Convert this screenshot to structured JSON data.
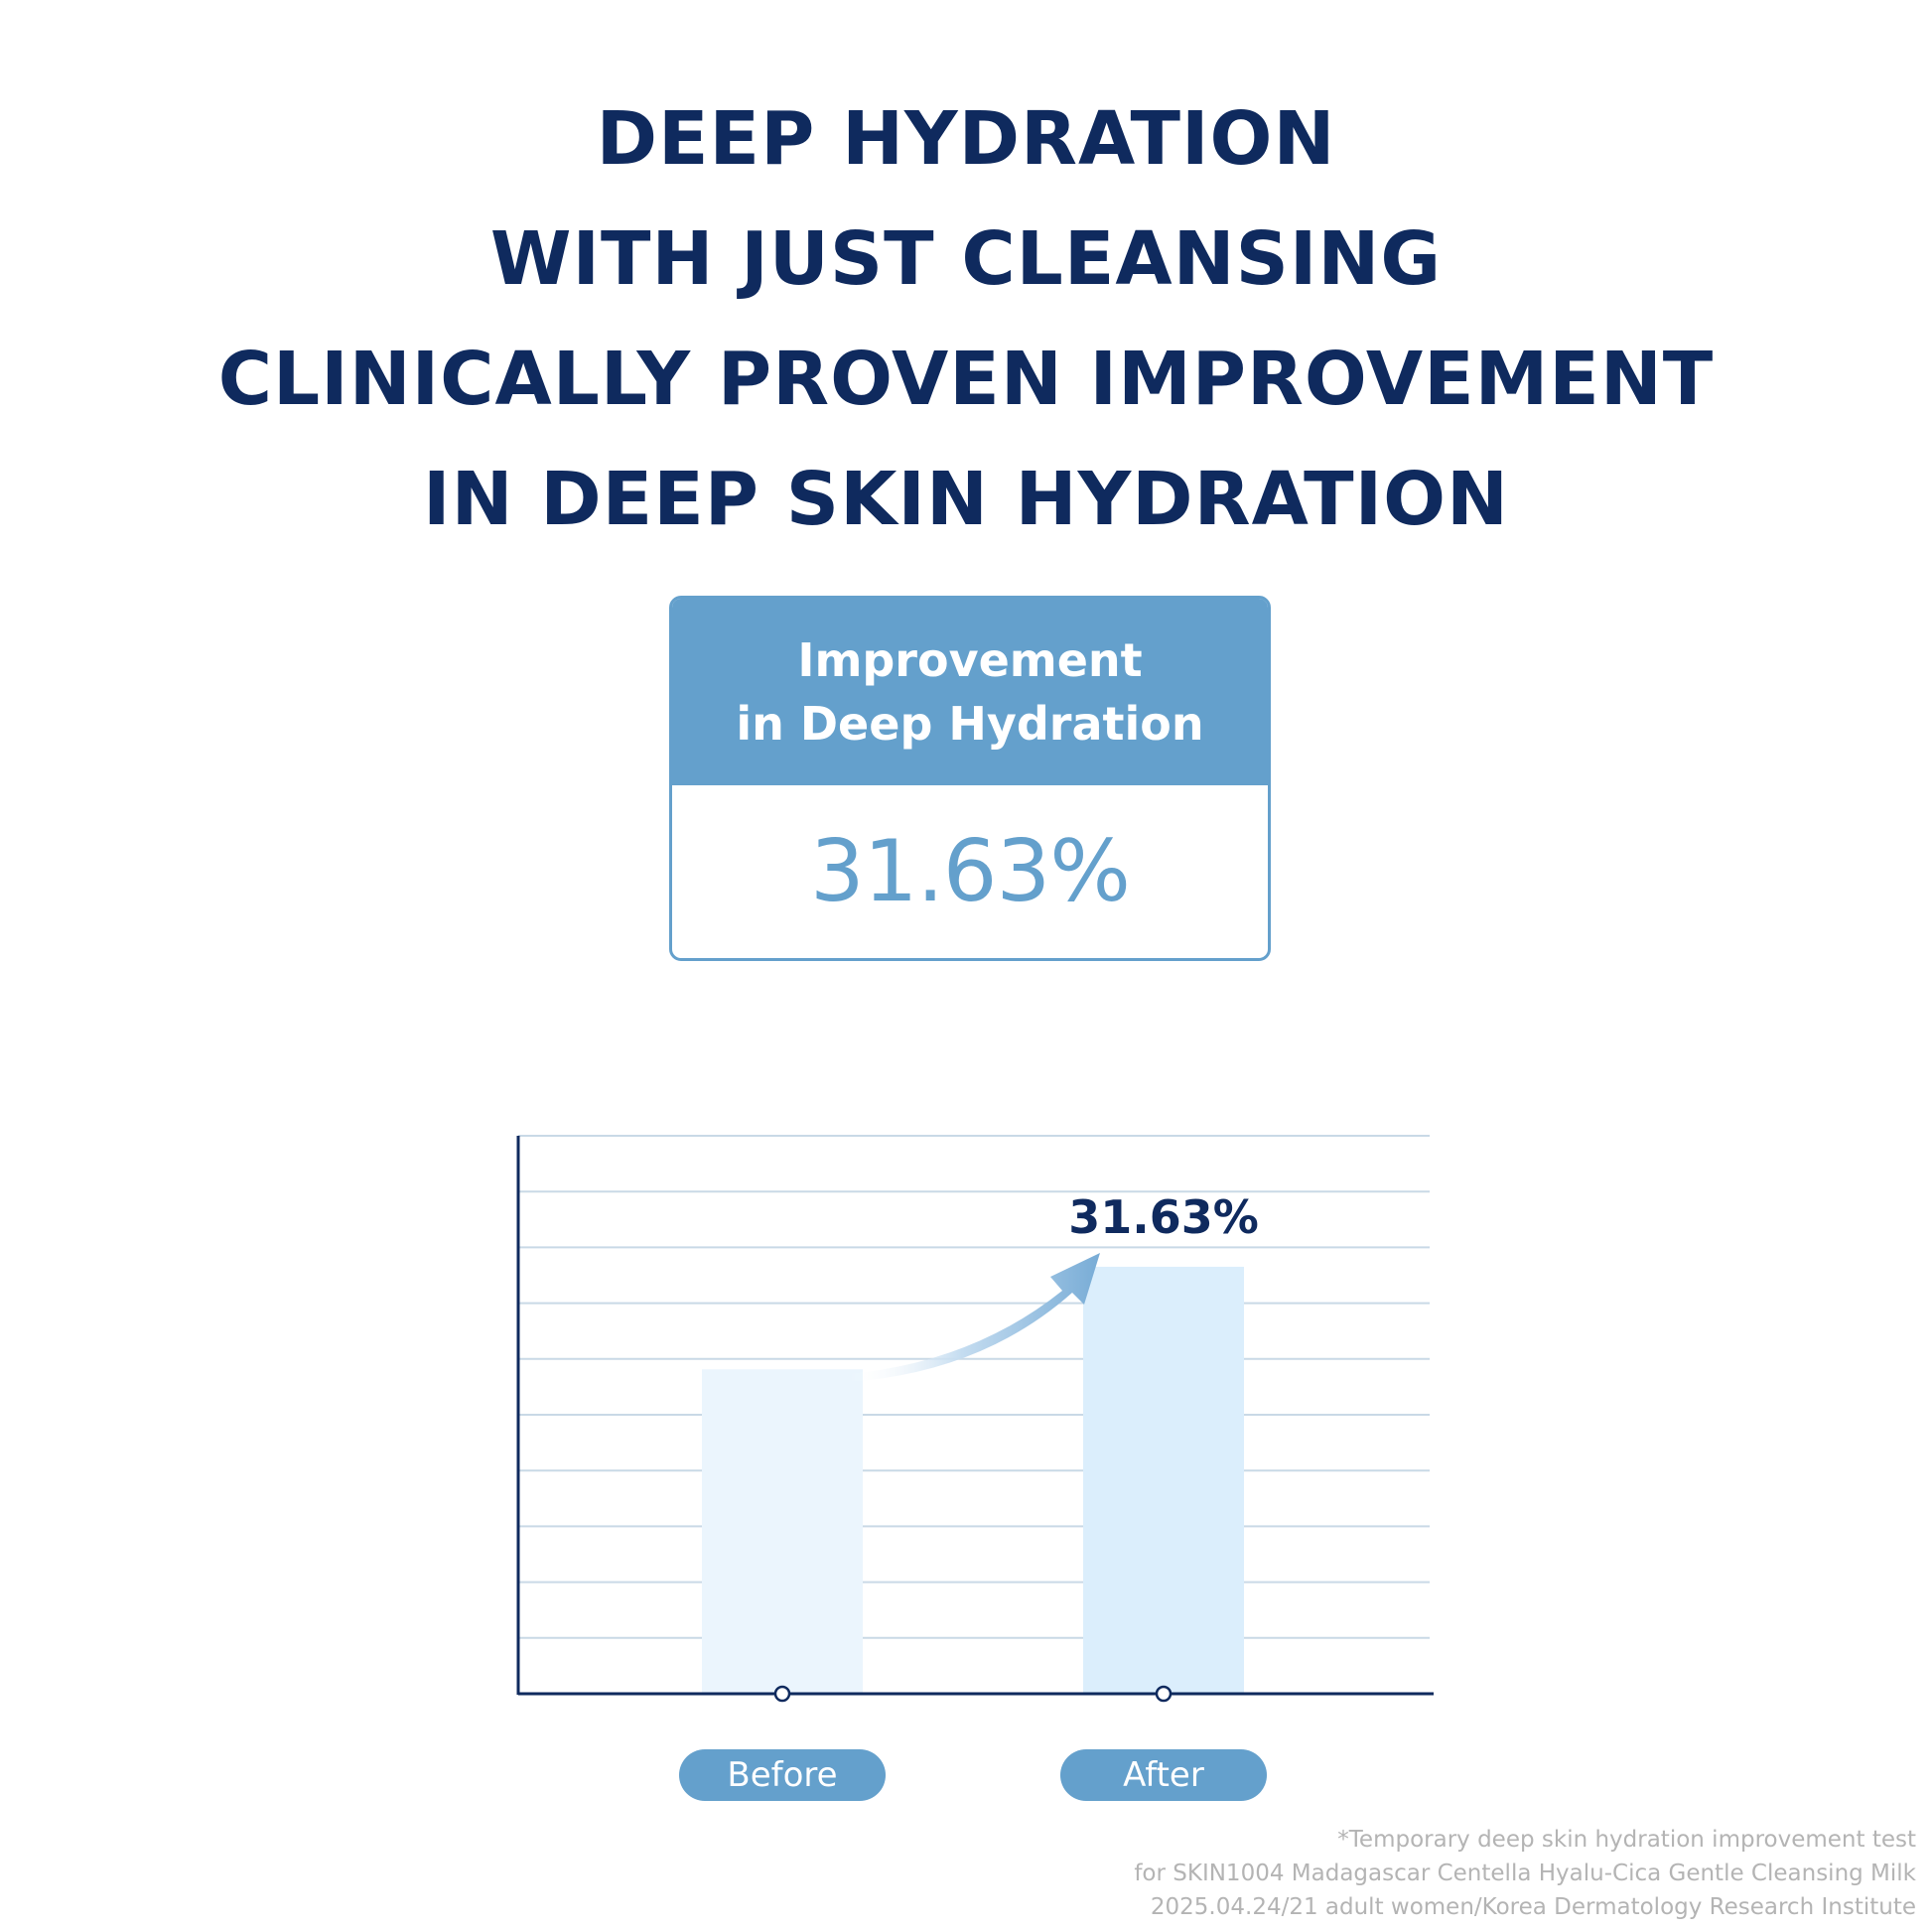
{
  "headline": [
    "DEEP HYDRATION",
    "WITH JUST CLEANSING",
    "CLINICALLY PROVEN IMPROVEMENT",
    "IN DEEP SKIN HYDRATION"
  ],
  "stat": {
    "label_line1": "Improvement",
    "label_line2": "in Deep Hydration",
    "value": "31.63%"
  },
  "colors": {
    "headline": "#0f2a5e",
    "accent": "#64a0cc",
    "bar_before": "#ebf5fd",
    "bar_after": "#dbeefc",
    "gridline": "#c9d9e6",
    "axis": "#0f2a5e",
    "footnote": "#b4b4b4"
  },
  "chart_data": {
    "type": "bar",
    "categories": [
      "Before",
      "After"
    ],
    "values": [
      100,
      131.63
    ],
    "data_labels": [
      "",
      "31.63%"
    ],
    "ylim": [
      0,
      172
    ],
    "grid": true,
    "gridline_count": 9,
    "annotation": "upward arrow from Before bar to After bar"
  },
  "footnote": [
    "*Temporary deep skin hydration improvement test",
    "for SKIN1004 Madagascar Centella Hyalu-Cica Gentle Cleansing Milk",
    "2025.04.24/21 adult women/Korea Dermatology Research Institute"
  ]
}
